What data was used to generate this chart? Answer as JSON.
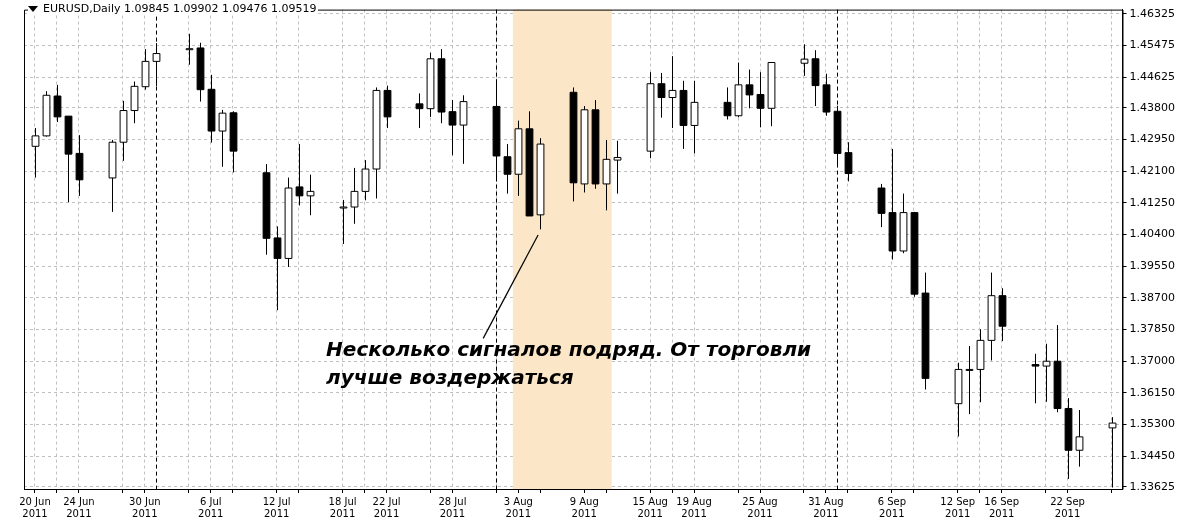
{
  "chart_data": {
    "type": "candlestick",
    "title": "EURUSD,Daily  1.09845 1.09902 1.09476 1.09519",
    "color": "#000000",
    "grid": true,
    "x": [
      "2011-06-20",
      "2011-06-21",
      "2011-06-22",
      "2011-06-23",
      "2011-06-24",
      "2011-06-27",
      "2011-06-28",
      "2011-06-29",
      "2011-06-30",
      "2011-07-01",
      "2011-07-04",
      "2011-07-05",
      "2011-07-06",
      "2011-07-07",
      "2011-07-08",
      "2011-07-11",
      "2011-07-12",
      "2011-07-13",
      "2011-07-14",
      "2011-07-15",
      "2011-07-18",
      "2011-07-19",
      "2011-07-20",
      "2011-07-21",
      "2011-07-22",
      "2011-07-25",
      "2011-07-26",
      "2011-07-27",
      "2011-07-28",
      "2011-07-29",
      "2011-08-01",
      "2011-08-02",
      "2011-08-03",
      "2011-08-04",
      "2011-08-05",
      "2011-08-08",
      "2011-08-09",
      "2011-08-10",
      "2011-08-11",
      "2011-08-12",
      "2011-08-15",
      "2011-08-16",
      "2011-08-17",
      "2011-08-18",
      "2011-08-19",
      "2011-08-22",
      "2011-08-23",
      "2011-08-24",
      "2011-08-25",
      "2011-08-26",
      "2011-08-29",
      "2011-08-30",
      "2011-08-31",
      "2011-09-01",
      "2011-09-02",
      "2011-09-05",
      "2011-09-06",
      "2011-09-07",
      "2011-09-08",
      "2011-09-09",
      "2011-09-12",
      "2011-09-13",
      "2011-09-14",
      "2011-09-15",
      "2011-09-16",
      "2011-09-19",
      "2011-09-20",
      "2011-09-21",
      "2011-09-22",
      "2011-09-23",
      "2011-09-26"
    ],
    "ohlc": [
      [
        1.4277,
        1.4326,
        1.4193,
        1.4305
      ],
      [
        1.4305,
        1.4425,
        1.4303,
        1.4414
      ],
      [
        1.4412,
        1.4442,
        1.4342,
        1.4356
      ],
      [
        1.4358,
        1.4358,
        1.4127,
        1.4256
      ],
      [
        1.4258,
        1.4307,
        1.4144,
        1.4187
      ],
      [
        1.4192,
        1.4294,
        1.4101,
        1.4288
      ],
      [
        1.4288,
        1.4399,
        1.4238,
        1.4373
      ],
      [
        1.4373,
        1.4451,
        1.4339,
        1.4438
      ],
      [
        1.4437,
        1.4538,
        1.4429,
        1.4505
      ],
      [
        1.4505,
        1.4554,
        1.4438,
        1.4526
      ],
      [
        1.4539,
        1.4579,
        1.4496,
        1.4539
      ],
      [
        1.4541,
        1.4555,
        1.4397,
        1.4429
      ],
      [
        1.443,
        1.4469,
        1.4287,
        1.4318
      ],
      [
        1.4318,
        1.4375,
        1.4222,
        1.4366
      ],
      [
        1.4367,
        1.4371,
        1.4207,
        1.4264
      ],
      [
        1.4206,
        1.4229,
        1.3986,
        1.403
      ],
      [
        1.4031,
        1.4062,
        1.3837,
        1.3976
      ],
      [
        1.3976,
        1.4193,
        1.3953,
        1.4165
      ],
      [
        1.4168,
        1.4283,
        1.4118,
        1.4144
      ],
      [
        1.4144,
        1.4201,
        1.4092,
        1.4156
      ],
      [
        1.4114,
        1.4133,
        1.4015,
        1.4114
      ],
      [
        1.4114,
        1.4219,
        1.4069,
        1.4156
      ],
      [
        1.4156,
        1.424,
        1.4132,
        1.4216
      ],
      [
        1.4216,
        1.4435,
        1.4137,
        1.4427
      ],
      [
        1.4427,
        1.444,
        1.4326,
        1.4356
      ],
      [
        1.4391,
        1.4419,
        1.4326,
        1.4378
      ],
      [
        1.4378,
        1.4528,
        1.4356,
        1.4512
      ],
      [
        1.4512,
        1.4538,
        1.4339,
        1.4369
      ],
      [
        1.437,
        1.4401,
        1.4253,
        1.4334
      ],
      [
        1.4334,
        1.4414,
        1.423,
        1.4397
      ],
      [
        1.4384,
        1.4457,
        1.4186,
        1.4251
      ],
      [
        1.4249,
        1.4283,
        1.415,
        1.4202
      ],
      [
        1.4202,
        1.4346,
        1.4144,
        1.4324
      ],
      [
        1.4324,
        1.4371,
        1.409,
        1.409
      ],
      [
        1.4093,
        1.4299,
        1.4054,
        1.4283
      ],
      [
        1.4422,
        1.4435,
        1.4129,
        1.4179
      ],
      [
        1.4176,
        1.4385,
        1.4153,
        1.4375
      ],
      [
        1.4375,
        1.4401,
        1.4163,
        1.4176
      ],
      [
        1.4176,
        1.4294,
        1.4105,
        1.4242
      ],
      [
        1.424,
        1.4292,
        1.415,
        1.4247
      ],
      [
        1.4264,
        1.4476,
        1.4245,
        1.4445
      ],
      [
        1.4445,
        1.4474,
        1.4354,
        1.4408
      ],
      [
        1.4408,
        1.4519,
        1.4326,
        1.4427
      ],
      [
        1.4427,
        1.4453,
        1.427,
        1.4333
      ],
      [
        1.4333,
        1.4453,
        1.4258,
        1.4395
      ],
      [
        1.4395,
        1.4435,
        1.4349,
        1.4359
      ],
      [
        1.4359,
        1.4502,
        1.4355,
        1.4442
      ],
      [
        1.4442,
        1.4483,
        1.4379,
        1.4415
      ],
      [
        1.4416,
        1.4476,
        1.4328,
        1.4379
      ],
      [
        1.4379,
        1.4502,
        1.4331,
        1.4502
      ],
      [
        1.45,
        1.4551,
        1.4466,
        1.4511
      ],
      [
        1.4512,
        1.4535,
        1.4385,
        1.444
      ],
      [
        1.4442,
        1.4472,
        1.4359,
        1.4369
      ],
      [
        1.4371,
        1.4386,
        1.4222,
        1.4258
      ],
      [
        1.426,
        1.4288,
        1.4183,
        1.4204
      ],
      [
        1.4165,
        1.4176,
        1.406,
        1.4097
      ],
      [
        1.4099,
        1.427,
        1.3973,
        1.3996
      ],
      [
        1.3996,
        1.415,
        1.399,
        1.4099
      ],
      [
        1.4099,
        1.4101,
        1.3873,
        1.388
      ],
      [
        1.3883,
        1.3938,
        1.3624,
        1.3654
      ],
      [
        1.3586,
        1.3696,
        1.3498,
        1.3678
      ],
      [
        1.3678,
        1.3741,
        1.3558,
        1.3678
      ],
      [
        1.3678,
        1.3786,
        1.359,
        1.3756
      ],
      [
        1.3756,
        1.3938,
        1.3702,
        1.3876
      ],
      [
        1.3876,
        1.3896,
        1.3754,
        1.3794
      ],
      [
        1.3691,
        1.372,
        1.3587,
        1.3687
      ],
      [
        1.3687,
        1.3747,
        1.3591,
        1.37
      ],
      [
        1.37,
        1.3797,
        1.3563,
        1.3573
      ],
      [
        1.3573,
        1.3601,
        1.3384,
        1.3461
      ],
      [
        1.3461,
        1.3569,
        1.3417,
        1.3497
      ],
      [
        1.3521,
        1.355,
        1.3361,
        1.3534
      ]
    ],
    "xlim": [
      "2011-06-19",
      "2011-09-27"
    ],
    "ylim": [
      1.3357,
      1.4644
    ],
    "yticks": [
      {
        "value": 1.46325,
        "label": "1.46325"
      },
      {
        "value": 1.45475,
        "label": "1.45475"
      },
      {
        "value": 1.44625,
        "label": "1.44625"
      },
      {
        "value": 1.438,
        "label": "1.43800"
      },
      {
        "value": 1.4295,
        "label": "1.42950"
      },
      {
        "value": 1.421,
        "label": "1.42100"
      },
      {
        "value": 1.4125,
        "label": "1.41250"
      },
      {
        "value": 1.404,
        "label": "1.40400"
      },
      {
        "value": 1.3955,
        "label": "1.39550"
      },
      {
        "value": 1.387,
        "label": "1.38700"
      },
      {
        "value": 1.3785,
        "label": "1.37850"
      },
      {
        "value": 1.37,
        "label": "1.37000"
      },
      {
        "value": 1.3615,
        "label": "1.36150"
      },
      {
        "value": 1.353,
        "label": "1.35300"
      },
      {
        "value": 1.3445,
        "label": "1.34450"
      },
      {
        "value": 1.33625,
        "label": "1.33625"
      }
    ],
    "xticks": [
      {
        "value": "2011-06-20",
        "label": "20 Jun 2011"
      },
      {
        "value": "2011-06-22",
        "label": null
      },
      {
        "value": "2011-06-24",
        "label": "24 Jun 2011"
      },
      {
        "value": "2011-06-28",
        "label": null
      },
      {
        "value": "2011-06-30",
        "label": "30 Jun 2011"
      },
      {
        "value": "2011-07-04",
        "label": null
      },
      {
        "value": "2011-07-06",
        "label": "6 Jul 2011"
      },
      {
        "value": "2011-07-08",
        "label": null
      },
      {
        "value": "2011-07-12",
        "label": "12 Jul 2011"
      },
      {
        "value": "2011-07-14",
        "label": null
      },
      {
        "value": "2011-07-18",
        "label": "18 Jul 2011"
      },
      {
        "value": "2011-07-20",
        "label": null
      },
      {
        "value": "2011-07-22",
        "label": "22 Jul 2011"
      },
      {
        "value": "2011-07-26",
        "label": null
      },
      {
        "value": "2011-07-28",
        "label": "28 Jul 2011"
      },
      {
        "value": "2011-08-01",
        "label": null
      },
      {
        "value": "2011-08-03",
        "label": "3 Aug 2011"
      },
      {
        "value": "2011-08-05",
        "label": null
      },
      {
        "value": "2011-08-09",
        "label": "9 Aug 2011"
      },
      {
        "value": "2011-08-11",
        "label": null
      },
      {
        "value": "2011-08-15",
        "label": "15 Aug 2011"
      },
      {
        "value": "2011-08-17",
        "label": null
      },
      {
        "value": "2011-08-19",
        "label": "19 Aug 2011"
      },
      {
        "value": "2011-08-23",
        "label": null
      },
      {
        "value": "2011-08-25",
        "label": "25 Aug 2011"
      },
      {
        "value": "2011-08-29",
        "label": null
      },
      {
        "value": "2011-08-31",
        "label": "31 Aug 2011"
      },
      {
        "value": "2011-09-02",
        "label": null
      },
      {
        "value": "2011-09-06",
        "label": "6 Sep 2011"
      },
      {
        "value": "2011-09-08",
        "label": null
      },
      {
        "value": "2011-09-12",
        "label": "12 Sep 2011"
      },
      {
        "value": "2011-09-14",
        "label": null
      },
      {
        "value": "2011-09-16",
        "label": "16 Sep 2011"
      },
      {
        "value": "2011-09-20",
        "label": null
      },
      {
        "value": "2011-09-22",
        "label": "22 Sep 2011"
      },
      {
        "value": "2011-09-26",
        "label": null
      }
    ],
    "ref_lines": [
      {
        "axis": "x",
        "value": "2011-07-01",
        "line_style": "dashed",
        "color": "#000000"
      },
      {
        "axis": "x",
        "value": "2011-08-01",
        "line_style": "dashed",
        "color": "#000000"
      },
      {
        "axis": "x",
        "value": "2011-09-01",
        "line_style": "dashed",
        "color": "#000000"
      }
    ],
    "bands": [
      {
        "axis": "x",
        "from": "2011-08-02T12:00",
        "to": "2011-08-11T12:00",
        "color": "#fce6c8"
      }
    ],
    "colors": [
      "#ffffff",
      "#ffffff",
      "#000000",
      "#000000",
      "#000000",
      "#ffffff",
      "#ffffff",
      "#ffffff",
      "#ffffff",
      "#ffffff",
      "#ffffff",
      "#000000",
      "#000000",
      "#ffffff",
      "#000000",
      "#000000",
      "#000000",
      "#ffffff",
      "#000000",
      "#ffffff",
      "#ffffff",
      "#ffffff",
      "#ffffff",
      "#ffffff",
      "#000000",
      "#000000",
      "#ffffff",
      "#000000",
      "#000000",
      "#ffffff",
      "#000000",
      "#000000",
      "#ffffff",
      "#000000",
      "#ffffff",
      "#000000",
      "#ffffff",
      "#000000",
      "#ffffff",
      "#ffffff",
      "#ffffff",
      "#000000",
      "#ffffff",
      "#000000",
      "#ffffff",
      "#000000",
      "#ffffff",
      "#000000",
      "#000000",
      "#ffffff",
      "#ffffff",
      "#000000",
      "#000000",
      "#000000",
      "#000000",
      "#000000",
      "#000000",
      "#ffffff",
      "#000000",
      "#000000",
      "#ffffff",
      "#ffffff",
      "#ffffff",
      "#ffffff",
      "#000000",
      "#000000",
      "#ffffff",
      "#000000",
      "#000000",
      "#ffffff",
      "#ffffff"
    ],
    "annotations": [
      "Несколько сигналов подряд. От торговли\nлучше воздержаться"
    ]
  }
}
